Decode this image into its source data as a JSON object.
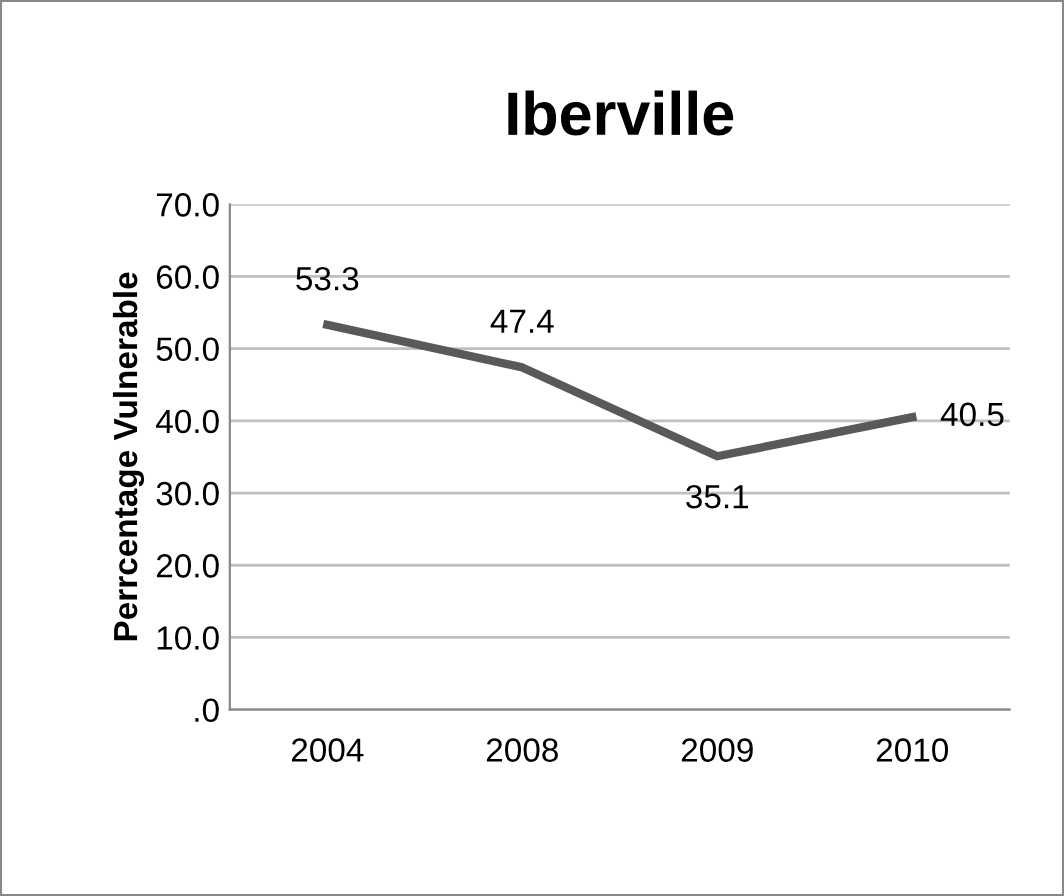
{
  "chart_data": {
    "type": "line",
    "title": "Iberville",
    "ylabel": "Perrcentage Vulnerable",
    "categories": [
      "2004",
      "2008",
      "2009",
      "2010"
    ],
    "series": [
      {
        "color": "#595959",
        "values": [
          53.3,
          47.4,
          35.1,
          40.5
        ]
      }
    ],
    "ylim": [
      0,
      70
    ],
    "yticks": [
      {
        "value": 0,
        "label": ".0"
      },
      {
        "value": 10,
        "label": "10.0"
      },
      {
        "value": 20,
        "label": "20.0"
      },
      {
        "value": 30,
        "label": "30.0"
      },
      {
        "value": 40,
        "label": "40.0"
      },
      {
        "value": 50,
        "label": "50.0"
      },
      {
        "value": 60,
        "label": "60.0"
      },
      {
        "value": 70,
        "label": "70.0"
      }
    ],
    "grid": "y",
    "data_labels": true,
    "marker": "none",
    "line_style": "solid"
  }
}
